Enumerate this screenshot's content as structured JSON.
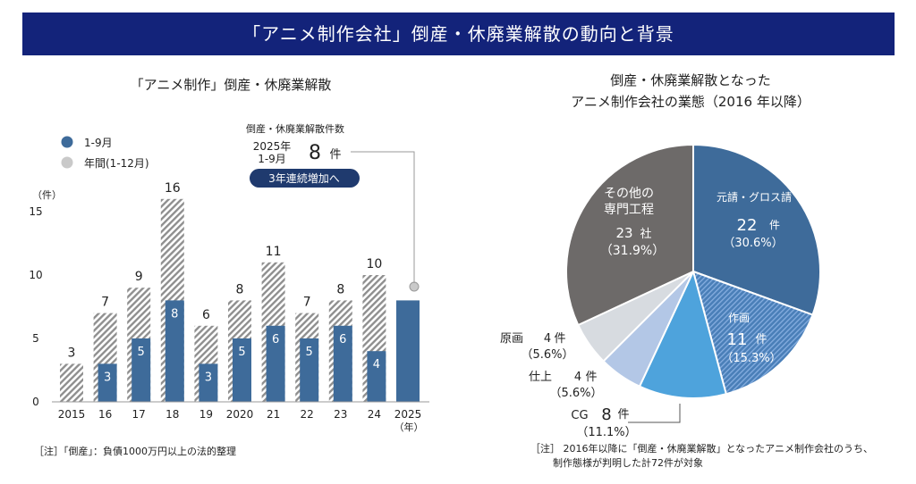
{
  "banner": {
    "title": "「アニメ制作会社」倒産・休廃業解散の動向と背景"
  },
  "bar_panel": {
    "title": "「アニメ制作」倒産・休廃業解散",
    "callout_title": "倒産・休廃業解散件数",
    "callout_year_line1": "2025年",
    "callout_year_line2": "1-9月",
    "callout_value": "8",
    "callout_unit": "件",
    "callout_badge": "3年連続増加へ",
    "note": "［注］「倒産」：負債1000万円以上の法的整理"
  },
  "pie_panel": {
    "title_line1": "倒産・休廃業解散となった",
    "title_line2": "アニメ制作会社の業態（2016 年以降）",
    "note_line1": "［注］ 2016年以降に「倒産・休廃業解散」となったアニメ制作会社のうち、",
    "note_line2": "制作態様が判明した計72件が対象"
  },
  "colors": {
    "banner": "#13237a",
    "series_1_9": "#3e6b9a",
    "series_annual": "#c9c9c9",
    "badge": "#1f3a6e",
    "pie_motouke": "#3e6b9a",
    "pie_sakuga": "#4a7fb8",
    "pie_cg": "#4ea3dc",
    "pie_shiage": "#b3c7e6",
    "pie_genga": "#d7dbe0",
    "pie_other": "#6d6a69"
  },
  "chart_data": [
    {
      "type": "bar",
      "categories": [
        "2015",
        "16",
        "17",
        "18",
        "19",
        "2020",
        "21",
        "22",
        "23",
        "24",
        "2025"
      ],
      "x_unit": "（年）",
      "ylabel": "（件）",
      "ylim": [
        0,
        17
      ],
      "yticks": [
        0,
        5,
        10,
        15
      ],
      "series": [
        {
          "name": "1-9月",
          "values": [
            null,
            3,
            5,
            8,
            3,
            5,
            6,
            5,
            6,
            4,
            8
          ],
          "labels": [
            "",
            "3",
            "5",
            "8",
            "3",
            "5",
            "6",
            "5",
            "6",
            "4",
            ""
          ]
        },
        {
          "name": "年間(1-12月)",
          "values": [
            3,
            7,
            9,
            16,
            6,
            8,
            11,
            7,
            8,
            10,
            null
          ],
          "labels": [
            "3",
            "7",
            "9",
            "16",
            "6",
            "8",
            "11",
            "7",
            "8",
            "10",
            ""
          ]
        }
      ],
      "legend": "top-left"
    },
    {
      "type": "pie",
      "slices": [
        {
          "label": "元請・グロス請",
          "value": 22,
          "count": "22",
          "unit": "件",
          "pct": "（30.6%）",
          "color": "#3e6b9a",
          "hatch": false,
          "text_color": "#ffffff"
        },
        {
          "label": "作画",
          "value": 11,
          "count": "11",
          "unit": "件",
          "pct": "（15.3%）",
          "color": "#4a7fb8",
          "hatch": true,
          "text_color": "#ffffff"
        },
        {
          "label": "CG",
          "value": 8,
          "count": "8",
          "unit": "件",
          "pct": "（11.1%）",
          "color": "#4ea3dc",
          "hatch": false,
          "text_color": "#222222"
        },
        {
          "label": "仕上",
          "value": 4,
          "count": "4",
          "unit": "件",
          "pct": "（5.6%）",
          "color": "#b3c7e6",
          "hatch": false,
          "text_color": "#222222"
        },
        {
          "label": "原画",
          "value": 4,
          "count": "4",
          "unit": "件",
          "pct": "（5.6%）",
          "color": "#d7dbe0",
          "hatch": false,
          "text_color": "#222222"
        },
        {
          "label_line1": "その他の",
          "label_line2": "専門工程",
          "value": 23,
          "count": "23",
          "unit": "社",
          "pct": "（31.9%）",
          "color": "#6d6a69",
          "hatch": false,
          "text_color": "#ffffff"
        }
      ]
    }
  ]
}
